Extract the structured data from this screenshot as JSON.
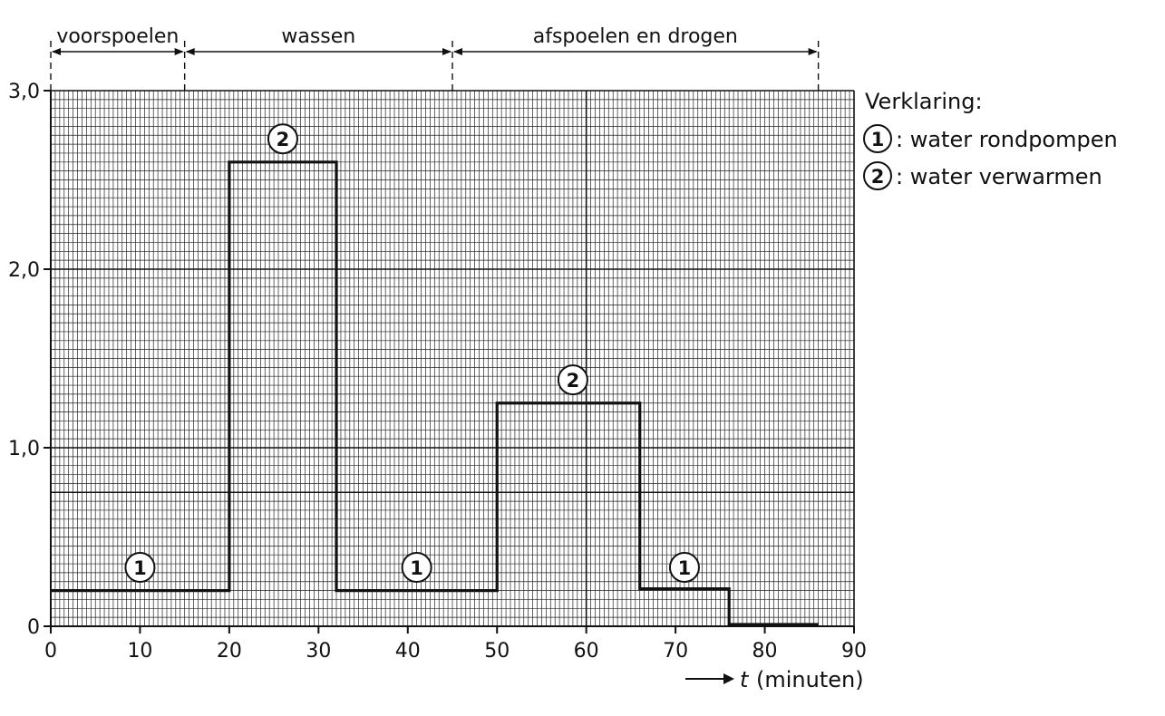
{
  "chart_data": {
    "type": "line",
    "step": true,
    "title": "",
    "xlabel_var": "t",
    "xlabel_unit": "(minuten)",
    "ylabel": "",
    "xlim": [
      0,
      90
    ],
    "ylim": [
      0,
      3.0
    ],
    "x_ticks": [
      0,
      10,
      20,
      30,
      40,
      50,
      60,
      70,
      80,
      90
    ],
    "x_tick_labels": [
      "0",
      "10",
      "20",
      "30",
      "40",
      "50",
      "60",
      "70",
      "80",
      "90"
    ],
    "y_ticks": [
      0,
      1.0,
      2.0,
      3.0
    ],
    "y_tick_labels": [
      "0",
      "1,0",
      "2,0",
      "3,0"
    ],
    "grid": true,
    "reference_line_y": 0.75,
    "series": [
      {
        "segments": [
          {
            "x_start": 0,
            "x_end": 20,
            "y": 0.2
          },
          {
            "x_start": 20,
            "x_end": 32,
            "y": 2.6
          },
          {
            "x_start": 32,
            "x_end": 50,
            "y": 0.2
          },
          {
            "x_start": 50,
            "x_end": 66,
            "y": 1.25
          },
          {
            "x_start": 66,
            "x_end": 76,
            "y": 0.21
          },
          {
            "x_start": 76,
            "x_end": 86,
            "y": 0.01
          }
        ]
      }
    ],
    "phases": [
      {
        "label": "voorspoelen",
        "x_start": 0,
        "x_end": 15
      },
      {
        "label": "wassen",
        "x_start": 15,
        "x_end": 45
      },
      {
        "label": "afspoelen en drogen",
        "x_start": 45,
        "x_end": 86
      }
    ],
    "markers": [
      {
        "label": "1",
        "x": 10,
        "y": 0.33
      },
      {
        "label": "2",
        "x": 26,
        "y": 2.73
      },
      {
        "label": "1",
        "x": 41,
        "y": 0.33
      },
      {
        "label": "2",
        "x": 58.5,
        "y": 1.38
      },
      {
        "label": "1",
        "x": 71,
        "y": 0.33
      }
    ],
    "legend": {
      "title": "Verklaring:",
      "placement": "right",
      "items": [
        {
          "marker": "1",
          "text": ": water rondpompen"
        },
        {
          "marker": "2",
          "text": ": water verwarmen"
        }
      ]
    }
  }
}
